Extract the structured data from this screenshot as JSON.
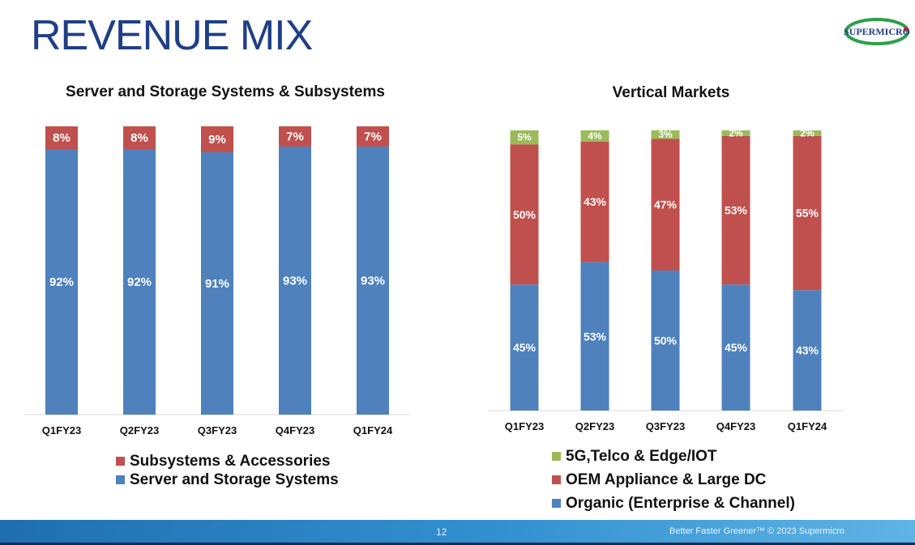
{
  "page": {
    "title": "REVENUE MIX",
    "logo_text": "SUPERMICRO",
    "page_number": "12",
    "footer_text": "Better Faster Greener™  © 2023 Supermicro"
  },
  "colors": {
    "blue": "#4f81bd",
    "red": "#c0504d",
    "green": "#9bbb59",
    "title": "#1f3f87"
  },
  "chart_data": [
    {
      "type": "bar",
      "stacked": true,
      "title": "Server and Storage Systems & Subsystems",
      "categories": [
        "Q1FY23",
        "Q2FY23",
        "Q3FY23",
        "Q4FY23",
        "Q1FY24"
      ],
      "ylim": [
        0,
        100
      ],
      "series": [
        {
          "name": "Server and Storage Systems",
          "values": [
            92,
            92,
            91,
            93,
            93
          ],
          "labels": [
            "92%",
            "92%",
            "91%",
            "93%",
            "93%"
          ],
          "color": "#4f81bd"
        },
        {
          "name": "Subsystems & Accessories",
          "values": [
            8,
            8,
            9,
            7,
            7
          ],
          "labels": [
            "8%",
            "8%",
            "9%",
            "7%",
            "7%"
          ],
          "color": "#c0504d"
        }
      ],
      "legend": [
        "Subsystems & Accessories",
        "Server and Storage Systems"
      ]
    },
    {
      "type": "bar",
      "stacked": true,
      "title": "Vertical Markets",
      "categories": [
        "Q1FY23",
        "Q2FY23",
        "Q3FY23",
        "Q4FY23",
        "Q1FY24"
      ],
      "ylim": [
        0,
        100
      ],
      "series": [
        {
          "name": "Organic (Enterprise & Channel)",
          "values": [
            45,
            53,
            50,
            45,
            43
          ],
          "labels": [
            "45%",
            "53%",
            "50%",
            "45%",
            "43%"
          ],
          "color": "#4f81bd"
        },
        {
          "name": "OEM Appliance & Large DC",
          "values": [
            50,
            43,
            47,
            53,
            55
          ],
          "labels": [
            "50%",
            "43%",
            "47%",
            "53%",
            "55%"
          ],
          "color": "#c0504d"
        },
        {
          "name": "5G,Telco & Edge/IOT",
          "values": [
            5,
            4,
            3,
            2,
            2
          ],
          "labels": [
            "5%",
            "4%",
            "3%",
            "2%",
            "2%"
          ],
          "color": "#9bbb59"
        }
      ],
      "legend": [
        "5G,Telco & Edge/IOT",
        "OEM Appliance & Large DC",
        "Organic (Enterprise & Channel)"
      ]
    }
  ]
}
